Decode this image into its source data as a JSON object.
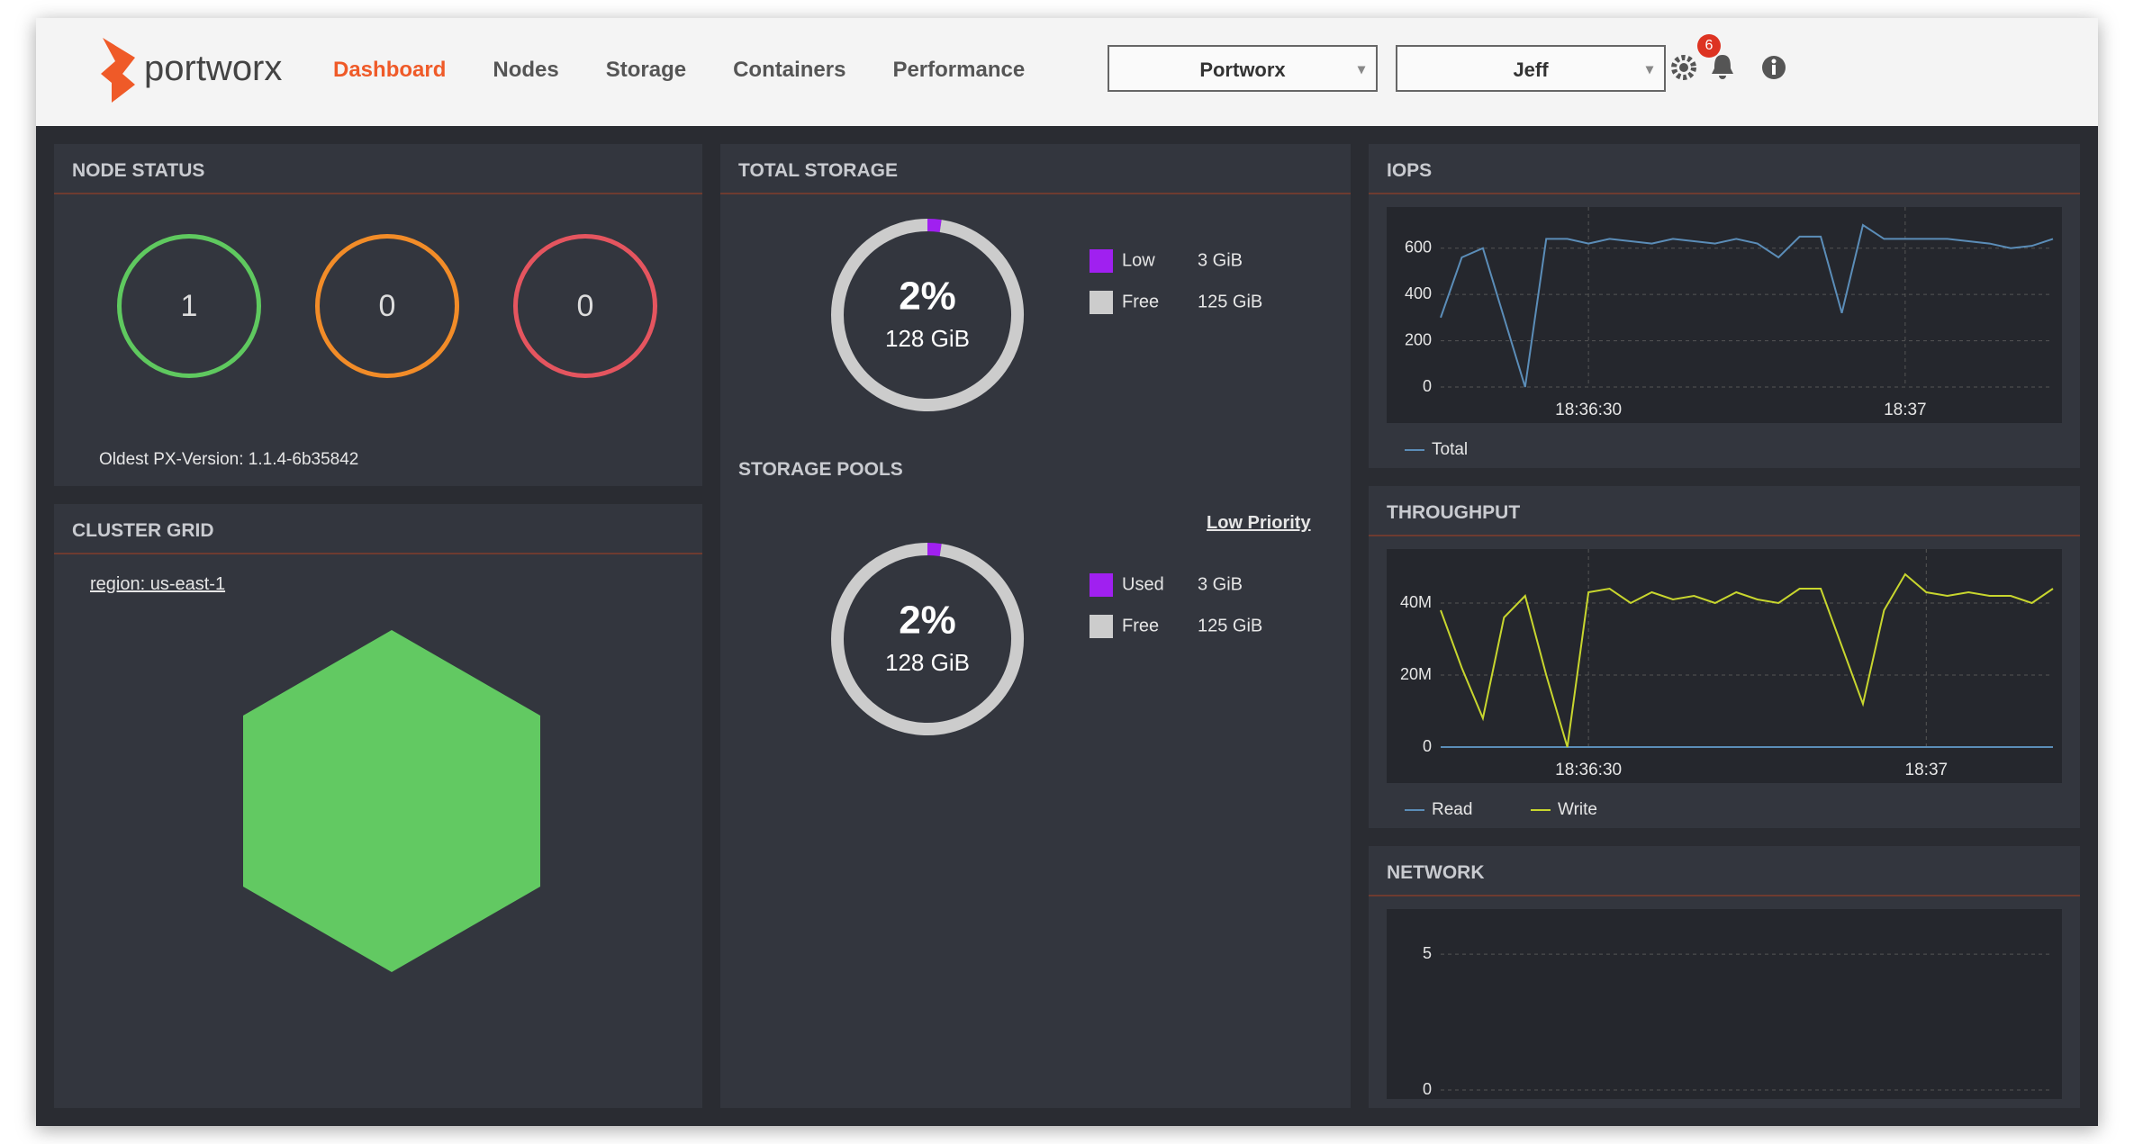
{
  "header": {
    "brand": "portworx",
    "nav": [
      "Dashboard",
      "Nodes",
      "Storage",
      "Containers",
      "Performance"
    ],
    "cluster_select": "Portworx",
    "user_select": "Jeff",
    "notifications": "6"
  },
  "node_status": {
    "title": "NODE STATUS",
    "counts": [
      {
        "value": "1",
        "color": "#5fc95f"
      },
      {
        "value": "0",
        "color": "#f28c28"
      },
      {
        "value": "0",
        "color": "#e5555f"
      }
    ],
    "version": "Oldest PX-Version: 1.1.4-6b35842"
  },
  "cluster_grid": {
    "title": "CLUSTER GRID",
    "region": "region: us-east-1"
  },
  "chart_data": [
    {
      "type": "pie",
      "title": "TOTAL STORAGE",
      "center_label": "2%",
      "total_label": "128 GiB",
      "categories": [
        "Low",
        "Free"
      ],
      "values": [
        3,
        125
      ],
      "value_labels": [
        "3 GiB",
        "125 GiB"
      ],
      "colors": [
        "#a020f0",
        "#cccccc"
      ]
    },
    {
      "type": "pie",
      "title": "STORAGE POOLS",
      "link": "Low Priority",
      "center_label": "2%",
      "total_label": "128 GiB",
      "categories": [
        "Used",
        "Free"
      ],
      "values": [
        3,
        125
      ],
      "value_labels": [
        "3 GiB",
        "125 GiB"
      ],
      "colors": [
        "#a020f0",
        "#cccccc"
      ]
    },
    {
      "type": "line",
      "title": "IOPS",
      "categories": [
        null,
        null,
        null,
        null,
        null,
        null,
        null,
        "18:36:30",
        null,
        null,
        null,
        null,
        null,
        null,
        null,
        null,
        null,
        null,
        null,
        null,
        null,
        null,
        "18:37",
        null,
        null,
        null,
        null,
        null,
        null,
        null
      ],
      "series": [
        {
          "name": "Total",
          "color": "#5b8db8",
          "values": [
            300,
            560,
            600,
            300,
            0,
            640,
            640,
            620,
            640,
            630,
            620,
            640,
            630,
            620,
            640,
            620,
            560,
            650,
            650,
            320,
            700,
            640,
            640,
            640,
            640,
            630,
            620,
            600,
            610,
            640
          ]
        }
      ],
      "ylim": [
        0,
        700
      ],
      "yticks": [
        0,
        200,
        400,
        600
      ],
      "grid": true
    },
    {
      "type": "line",
      "title": "THROUGHPUT",
      "categories": [
        null,
        null,
        null,
        null,
        null,
        null,
        null,
        "18:36:30",
        null,
        null,
        null,
        null,
        null,
        null,
        null,
        null,
        null,
        null,
        null,
        null,
        null,
        null,
        null,
        "18:37",
        null,
        null,
        null,
        null,
        null,
        null
      ],
      "series": [
        {
          "name": "Read",
          "color": "#5b8db8",
          "values": [
            0,
            0,
            0,
            0,
            0,
            0,
            0,
            0,
            0,
            0,
            0,
            0,
            0,
            0,
            0,
            0,
            0,
            0,
            0,
            0,
            0,
            0,
            0,
            0,
            0,
            0,
            0,
            0,
            0,
            0
          ]
        },
        {
          "name": "Write",
          "color": "#c8d62e",
          "values": [
            38000000,
            22000000,
            8000000,
            36000000,
            42000000,
            20000000,
            0,
            43000000,
            44000000,
            40000000,
            43000000,
            41000000,
            42000000,
            40000000,
            43000000,
            41000000,
            40000000,
            44000000,
            44000000,
            28000000,
            12000000,
            38000000,
            48000000,
            43000000,
            42000000,
            43000000,
            42000000,
            42000000,
            40000000,
            44000000
          ]
        }
      ],
      "ylim": [
        0,
        50000000
      ],
      "yticks": [
        0,
        {
          "value": 20000000,
          "label": "20M"
        },
        {
          "value": 40000000,
          "label": "40M"
        }
      ],
      "grid": true
    },
    {
      "type": "line",
      "title": "NETWORK",
      "categories": [],
      "series": [],
      "ylim": [
        0,
        6
      ],
      "yticks": [
        0,
        5
      ],
      "grid": true
    }
  ]
}
